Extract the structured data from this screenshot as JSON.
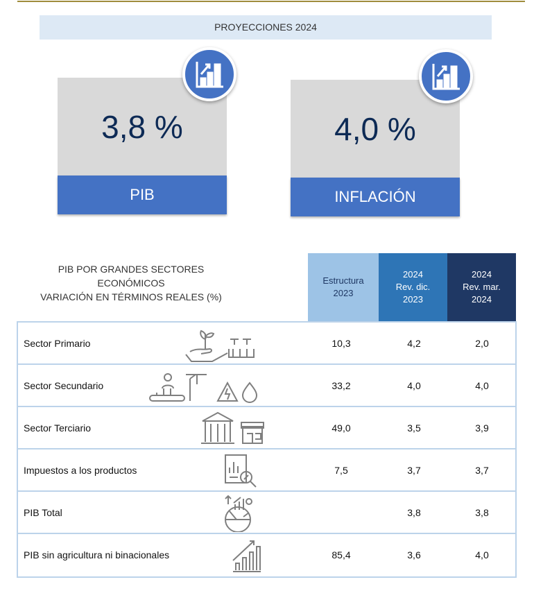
{
  "header": {
    "title": "PROYECCIONES 2024"
  },
  "cards": [
    {
      "value": "3,8 %",
      "label": "PIB",
      "icon": "bar-chart-growth-icon"
    },
    {
      "value": "4,0 %",
      "label": "INFLACIÓN",
      "icon": "bar-chart-growth-icon"
    }
  ],
  "table": {
    "title": [
      "PIB POR GRANDES SECTORES",
      "ECONÓMICOS",
      "VARIACIÓN EN TÉRMINOS REALES (%)"
    ],
    "columns": [
      {
        "lines": [
          "Estructura",
          "2023"
        ],
        "color": "#9dc3e6"
      },
      {
        "lines": [
          "2024",
          "Rev. dic.",
          "2023"
        ],
        "color": "#2e75b6"
      },
      {
        "lines": [
          "2024",
          "Rev. mar.",
          "2024"
        ],
        "color": "#1f3864"
      }
    ],
    "rows": [
      {
        "name": "Sector Primario",
        "icon": "agriculture-icon",
        "values": [
          "10,3",
          "4,2",
          "2,0"
        ]
      },
      {
        "name": "Sector Secundario",
        "icon": "industry-icon",
        "values": [
          "33,2",
          "4,0",
          "4,0"
        ]
      },
      {
        "name": "Sector Terciario",
        "icon": "bank-store-icon",
        "values": [
          "49,0",
          "3,5",
          "3,9"
        ]
      },
      {
        "name": "Impuestos a los productos",
        "icon": "tax-document-icon",
        "values": [
          "7,5",
          "3,7",
          "3,7"
        ]
      },
      {
        "name": "PIB Total",
        "icon": "globe-growth-icon",
        "values": [
          "",
          "3,8",
          "3,8"
        ]
      },
      {
        "name": "PIB sin agricultura ni binacionales",
        "icon": "bar-chart-growth-icon",
        "values": [
          "85,4",
          "3,6",
          "4,0"
        ]
      }
    ]
  }
}
